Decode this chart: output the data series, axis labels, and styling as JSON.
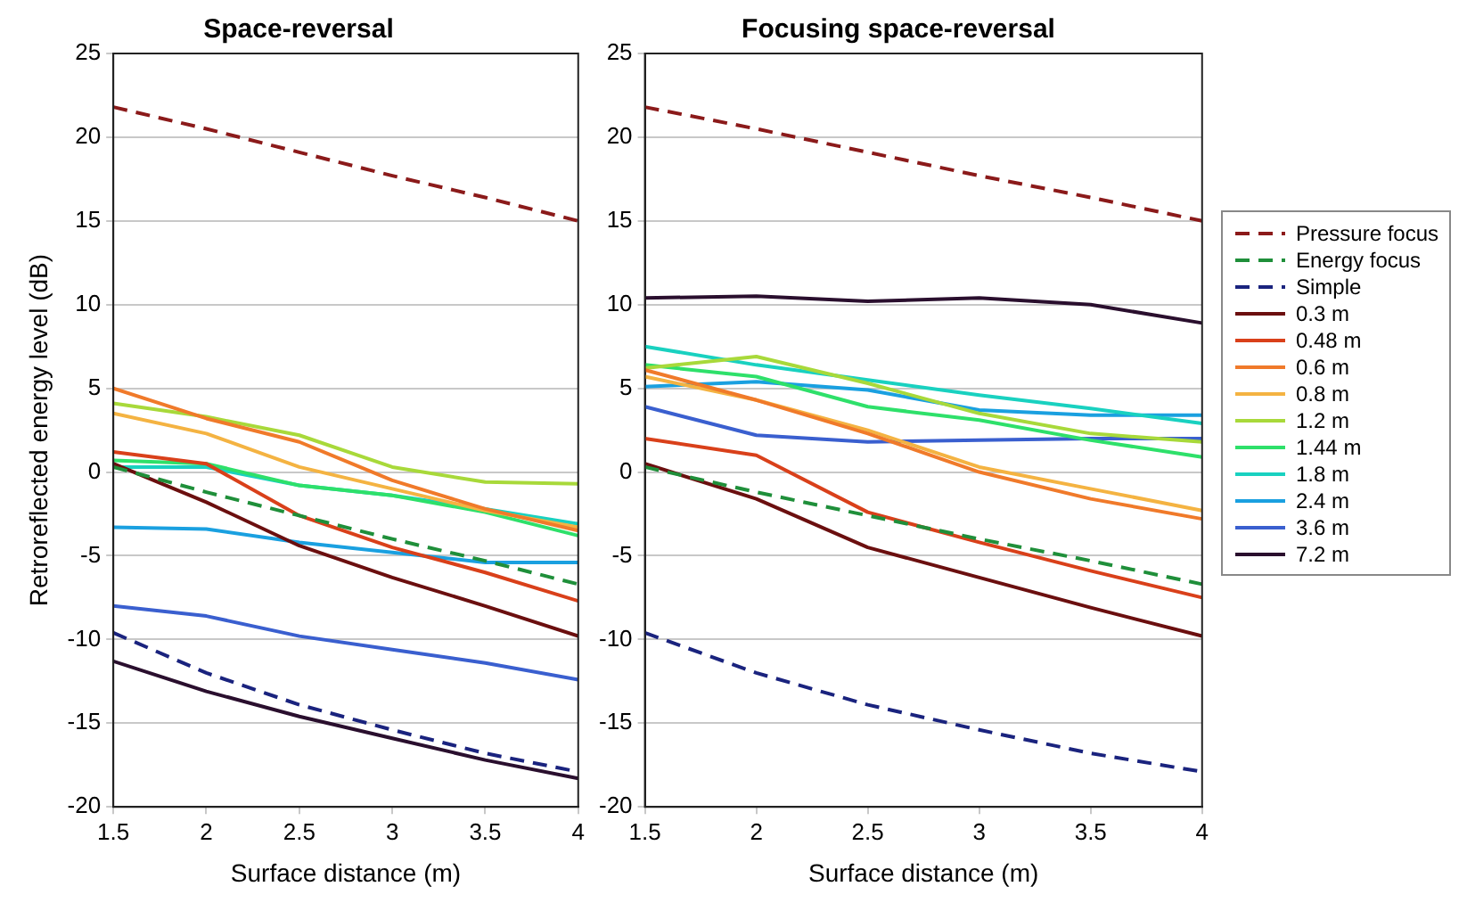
{
  "chart_data": [
    {
      "type": "line",
      "title": "Space-reversal",
      "xlabel": "Surface distance (m)",
      "ylabel": "Retroreflected energy level (dB)",
      "x": [
        1.5,
        2,
        2.5,
        3,
        3.5,
        4
      ],
      "xlim": [
        1.5,
        4
      ],
      "xticks": [
        1.5,
        2,
        2.5,
        3,
        3.5,
        4
      ],
      "ylim": [
        -20,
        25
      ],
      "yticks": [
        -20,
        -15,
        -10,
        -5,
        0,
        5,
        10,
        15,
        20,
        25
      ],
      "grid": "y",
      "legend": false,
      "marker": "none",
      "series": [
        {
          "color": "#8b1a1a",
          "line_style": "dashed",
          "values": [
            21.8,
            20.5,
            19.1,
            17.7,
            16.4,
            15
          ]
        },
        {
          "color": "#1f8f3a",
          "line_style": "dashed",
          "values": [
            0.3,
            -1.2,
            -2.6,
            -4,
            -5.3,
            -6.7
          ]
        },
        {
          "color": "#1a237e",
          "line_style": "dashed",
          "values": [
            -9.6,
            -12,
            -13.9,
            -15.4,
            -16.8,
            -17.9
          ]
        },
        {
          "color": "#6b0f0f",
          "values": [
            0.5,
            -1.8,
            -4.4,
            -6.3,
            -8,
            -9.8
          ]
        },
        {
          "color": "#d9401a",
          "values": [
            1.2,
            0.5,
            -2.6,
            -4.5,
            -6,
            -7.7
          ]
        },
        {
          "color": "#f07a2a",
          "values": [
            5,
            3.2,
            1.8,
            -0.5,
            -2.2,
            -3.5
          ]
        },
        {
          "color": "#f4b342",
          "values": [
            3.5,
            2.3,
            0.3,
            -1,
            -2.3,
            -3.3
          ]
        },
        {
          "color": "#a8d93a",
          "values": [
            4.1,
            3.3,
            2.2,
            0.3,
            -0.6,
            -0.7
          ]
        },
        {
          "color": "#2ee06a",
          "values": [
            0.7,
            0.5,
            -0.8,
            -1.4,
            -2.4,
            -3.8
          ]
        },
        {
          "color": "#19d1c0",
          "values": [
            0.3,
            0.3,
            -0.8,
            -1.4,
            -2.2,
            -3.1
          ]
        },
        {
          "color": "#1aa0e0",
          "values": [
            -3.3,
            -3.4,
            -4.2,
            -4.8,
            -5.4,
            -5.4
          ]
        },
        {
          "color": "#3a5fcf",
          "values": [
            -8,
            -8.6,
            -9.8,
            -10.6,
            -11.4,
            -12.4
          ]
        },
        {
          "color": "#2a0f2e",
          "values": [
            -11.3,
            -13.1,
            -14.6,
            -15.9,
            -17.2,
            -18.3
          ]
        }
      ]
    },
    {
      "type": "line",
      "title": "Focusing space-reversal",
      "xlabel": "Surface distance (m)",
      "x": [
        1.5,
        2,
        2.5,
        3,
        3.5,
        4
      ],
      "xlim": [
        1.5,
        4
      ],
      "xticks": [
        1.5,
        2,
        2.5,
        3,
        3.5,
        4
      ],
      "ylim": [
        -20,
        25
      ],
      "yticks": [
        -20,
        -15,
        -10,
        -5,
        0,
        5,
        10,
        15,
        20,
        25
      ],
      "grid": "y",
      "legend": "right",
      "marker": "none",
      "series": [
        {
          "name": "Pressure focus",
          "color": "#8b1a1a",
          "line_style": "dashed",
          "values": [
            21.8,
            20.5,
            19.1,
            17.7,
            16.4,
            15
          ]
        },
        {
          "name": "Energy focus",
          "color": "#1f8f3a",
          "line_style": "dashed",
          "values": [
            0.3,
            -1.2,
            -2.6,
            -4,
            -5.3,
            -6.7
          ]
        },
        {
          "name": "Simple",
          "color": "#1a237e",
          "line_style": "dashed",
          "values": [
            -9.6,
            -12,
            -13.9,
            -15.4,
            -16.8,
            -17.9
          ]
        },
        {
          "name": "0.3 m",
          "color": "#6b0f0f",
          "values": [
            0.5,
            -1.6,
            -4.5,
            -6.3,
            -8.1,
            -9.8
          ]
        },
        {
          "name": "0.48 m",
          "color": "#d9401a",
          "values": [
            2,
            1,
            -2.4,
            -4.2,
            -5.9,
            -7.5
          ]
        },
        {
          "name": "0.6 m",
          "color": "#f07a2a",
          "values": [
            6.1,
            4.3,
            2.3,
            0,
            -1.6,
            -2.8
          ]
        },
        {
          "name": "0.8 m",
          "color": "#f4b342",
          "values": [
            5.7,
            4.3,
            2.5,
            0.3,
            -1,
            -2.3
          ]
        },
        {
          "name": "1.2 m",
          "color": "#a8d93a",
          "values": [
            6.2,
            6.9,
            5.3,
            3.5,
            2.3,
            1.8
          ]
        },
        {
          "name": "1.44 m",
          "color": "#2ee06a",
          "values": [
            6.4,
            5.7,
            3.9,
            3.1,
            1.9,
            0.9
          ]
        },
        {
          "name": "1.8 m",
          "color": "#19d1c0",
          "values": [
            7.5,
            6.4,
            5.5,
            4.6,
            3.8,
            2.9
          ]
        },
        {
          "name": "2.4 m",
          "color": "#1aa0e0",
          "values": [
            5.1,
            5.4,
            4.9,
            3.7,
            3.4,
            3.4
          ]
        },
        {
          "name": "3.6 m",
          "color": "#3a5fcf",
          "values": [
            3.9,
            2.2,
            1.8,
            1.9,
            2,
            2
          ]
        },
        {
          "name": "7.2 m",
          "color": "#2a0f2e",
          "values": [
            10.4,
            10.5,
            10.2,
            10.4,
            10,
            8.9
          ]
        }
      ]
    }
  ]
}
